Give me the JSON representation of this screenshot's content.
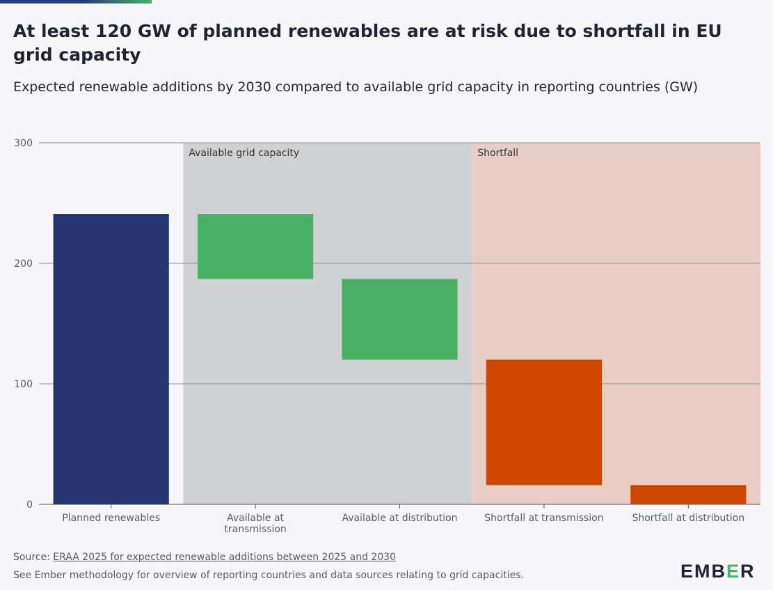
{
  "title": "At least 120 GW of planned renewables are at risk due to shortfall in EU grid capacity",
  "subtitle": "Expected renewable additions by 2030 compared to available grid capacity in reporting countries (GW)",
  "colors": {
    "planned": "#263570",
    "available": "#4ab066",
    "shortfall": "#cf4600",
    "band_available": "#d0d1d3",
    "band_shortfall": "#e8cec7"
  },
  "chart_data": {
    "type": "bar",
    "subtype": "waterfall",
    "ylim": [
      0,
      300
    ],
    "yticks": [
      0,
      100,
      200,
      300
    ],
    "categories": [
      "Planned renewables",
      "Available at transmission",
      "Available at distribution",
      "Shortfall at transmission",
      "Shortfall at distribution"
    ],
    "bars": [
      {
        "category": "Planned renewables",
        "start": 0,
        "end": 241,
        "color_key": "planned"
      },
      {
        "category": "Available at transmission",
        "start": 187,
        "end": 241,
        "color_key": "available"
      },
      {
        "category": "Available at distribution",
        "start": 120,
        "end": 187,
        "color_key": "available"
      },
      {
        "category": "Shortfall at transmission",
        "start": 16,
        "end": 120,
        "color_key": "shortfall"
      },
      {
        "category": "Shortfall at distribution",
        "start": 0,
        "end": 16,
        "color_key": "shortfall"
      }
    ],
    "bands": [
      {
        "label": "Available grid capacity",
        "from_category": 1,
        "to_category": 2,
        "color_key": "band_available"
      },
      {
        "label": "Shortfall",
        "from_category": 3,
        "to_category": 4,
        "color_key": "band_shortfall"
      }
    ],
    "grid": true
  },
  "footer": {
    "source_prefix": "Source: ",
    "source_link": "ERAA 2025 for expected renewable additions between 2025 and 2030",
    "note": "See Ember methodology for overview of reporting countries and data sources relating to grid capacities."
  },
  "logo": {
    "part1": "EMB",
    "part2": "E",
    "part3": "R"
  }
}
